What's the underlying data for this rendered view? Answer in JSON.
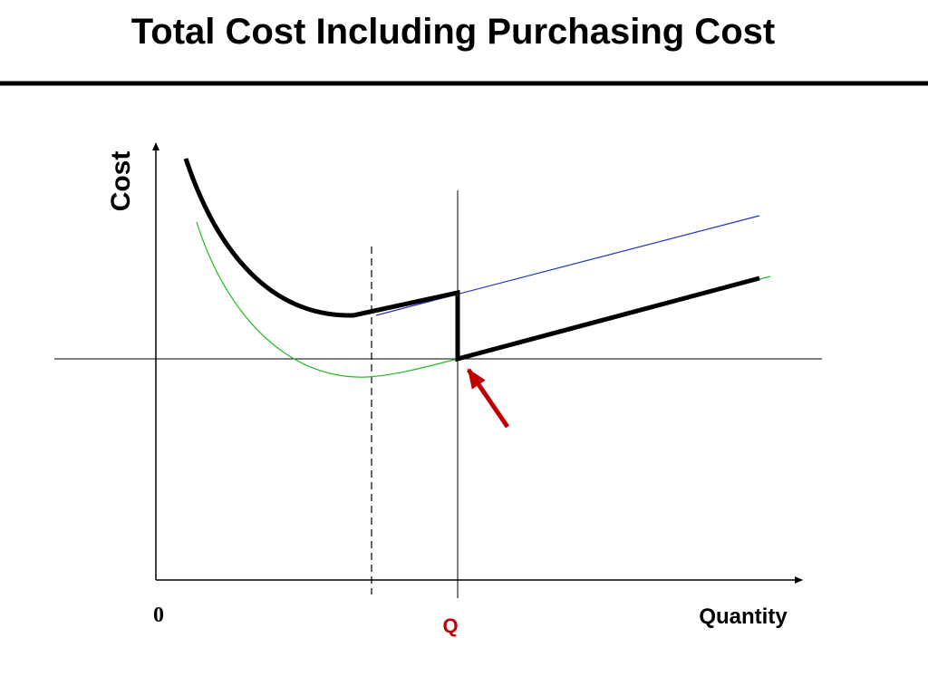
{
  "header": {
    "title": "Total Cost Including Purchasing Cost"
  },
  "diagram": {
    "y_axis_label": "Cost",
    "x_axis_label": "Quantity",
    "origin_label": "0",
    "breakpoint_label": "Q"
  }
}
